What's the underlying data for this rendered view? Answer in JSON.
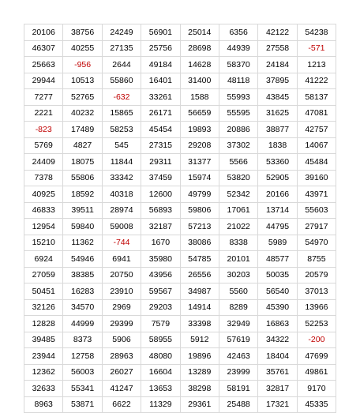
{
  "table": {
    "negative_color": "#c00000",
    "rows": [
      [
        "20106",
        "38756",
        "24249",
        "56901",
        "25014",
        "6356",
        "42122",
        "54238"
      ],
      [
        "46307",
        "40255",
        "27135",
        "25756",
        "28698",
        "44939",
        "27558",
        "-571"
      ],
      [
        "25663",
        "-956",
        "2644",
        "49184",
        "14628",
        "58370",
        "24184",
        "1213"
      ],
      [
        "29944",
        "10513",
        "55860",
        "16401",
        "31400",
        "48118",
        "37895",
        "41222"
      ],
      [
        "7277",
        "52765",
        "-632",
        "33261",
        "1588",
        "55993",
        "43845",
        "58137"
      ],
      [
        "2221",
        "40232",
        "15865",
        "26171",
        "56659",
        "55595",
        "31625",
        "47081"
      ],
      [
        "-823",
        "17489",
        "58253",
        "45454",
        "19893",
        "20886",
        "38877",
        "42757"
      ],
      [
        "5769",
        "4827",
        "545",
        "27315",
        "29208",
        "37302",
        "1838",
        "14067"
      ],
      [
        "24409",
        "18075",
        "11844",
        "29311",
        "31377",
        "5566",
        "53360",
        "45484"
      ],
      [
        "7378",
        "55806",
        "33342",
        "37459",
        "15974",
        "53820",
        "52905",
        "39160"
      ],
      [
        "40925",
        "18592",
        "40318",
        "12600",
        "49799",
        "52342",
        "20166",
        "43971"
      ],
      [
        "46833",
        "39511",
        "28974",
        "56893",
        "59806",
        "17061",
        "13714",
        "55603"
      ],
      [
        "12954",
        "59840",
        "59008",
        "32187",
        "57213",
        "21022",
        "44795",
        "27917"
      ],
      [
        "15210",
        "11362",
        "-744",
        "1670",
        "38086",
        "8338",
        "5989",
        "54970"
      ],
      [
        "6924",
        "54946",
        "6941",
        "35980",
        "54785",
        "20101",
        "48577",
        "8755"
      ],
      [
        "27059",
        "38385",
        "20750",
        "43956",
        "26556",
        "30203",
        "50035",
        "20579"
      ],
      [
        "50451",
        "16283",
        "23910",
        "59567",
        "34987",
        "5560",
        "56540",
        "37013"
      ],
      [
        "32126",
        "34570",
        "2969",
        "29203",
        "14914",
        "8289",
        "45390",
        "13966"
      ],
      [
        "12828",
        "44999",
        "29399",
        "7579",
        "33398",
        "32949",
        "16863",
        "52253"
      ],
      [
        "39485",
        "8373",
        "5906",
        "58955",
        "5912",
        "57619",
        "34322",
        "-200"
      ],
      [
        "23944",
        "12758",
        "28963",
        "48080",
        "19896",
        "42463",
        "18404",
        "47699"
      ],
      [
        "12362",
        "56003",
        "26027",
        "16604",
        "13289",
        "23999",
        "35761",
        "49861"
      ],
      [
        "32633",
        "55341",
        "41247",
        "13653",
        "38298",
        "58191",
        "32817",
        "9170"
      ],
      [
        "8963",
        "53871",
        "6622",
        "11329",
        "29361",
        "25488",
        "17321",
        "45335"
      ]
    ]
  }
}
